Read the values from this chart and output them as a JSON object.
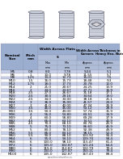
{
  "rows": [
    [
      "M5",
      "0.8",
      "8.0",
      "7.78",
      "9.24",
      "5.1"
    ],
    [
      "M6",
      "1",
      "10.0",
      "9.78",
      "11.55",
      "5.7"
    ],
    [
      "M8",
      "1.25",
      "13.0",
      "12.73",
      "15.01",
      "7.5"
    ],
    [
      "M10",
      "1.5",
      "16.0",
      "15.73",
      "18.48",
      "9.3"
    ],
    [
      "M12",
      "1.75",
      "18.0",
      "17.73",
      "20.78",
      "12.0"
    ],
    [
      "M14",
      "2",
      "21.0",
      "20.67",
      "24.25",
      "13.9"
    ],
    [
      "M16",
      "2",
      "24.0",
      "23.67",
      "27.71",
      "15.9"
    ],
    [
      "M18",
      "2.5",
      "27.0",
      "26.67",
      "31.18",
      "17.1"
    ],
    [
      "M20",
      "2.5",
      "30.0",
      "29.16",
      "34.64",
      "19.0"
    ],
    [
      "M22",
      "2.5",
      "34.0",
      "33.00",
      "38.18",
      "21.1"
    ],
    [
      "M24",
      "3",
      "36.0",
      "35.00",
      "41.57",
      "23.0"
    ],
    [
      "M27",
      "3",
      "41.0",
      "40.00",
      "47.34",
      "25.9"
    ],
    [
      "M30",
      "3.5",
      "46.0",
      "45.00",
      "53.12",
      "28.9"
    ],
    [
      "M33",
      "3.5",
      "50.0",
      "49.00",
      "57.74",
      "31.9"
    ],
    [
      "M36",
      "4",
      "55.0",
      "53.80",
      "63.51",
      "34.9"
    ],
    [
      "M39",
      "4",
      "60.0",
      "58.80",
      "69.28",
      "37.9"
    ],
    [
      "M42",
      "4.5",
      "65.0",
      "63.10",
      "74.51",
      "40.9"
    ],
    [
      "M45",
      "4.5",
      "70.0",
      "68.10",
      "80.78",
      "43.9"
    ],
    [
      "M48",
      "5",
      "75.0",
      "73.10",
      "86.60",
      "46.9"
    ],
    [
      "M52",
      "5",
      "80.0",
      "78.10",
      "92.38",
      "49.9"
    ],
    [
      "M56",
      "5.5",
      "85.0",
      "83.10",
      "98.15",
      "52.4"
    ],
    [
      "M60",
      "5.5",
      "90.0",
      "88.10",
      "103.92",
      "55.4"
    ],
    [
      "M64",
      "6",
      "95.0",
      "93.10",
      "109.70",
      "58.4"
    ],
    [
      "M68",
      "6",
      "100.0",
      "98.10",
      "115.47",
      "61.4"
    ],
    [
      "M72",
      "6",
      "105.0",
      "102.87",
      "121.24",
      "64.4"
    ],
    [
      "M80",
      "6",
      "115.0",
      "112.87",
      "132.79",
      "70.4"
    ],
    [
      "M90",
      "6",
      "130.0",
      "127.87",
      "150.11",
      "79.4"
    ],
    [
      "M100",
      "6",
      "145.0",
      "142.87",
      "167.43",
      "88.4"
    ]
  ],
  "bg_color": "#ffffff",
  "row_color_even": "#c8cfe8",
  "row_color_odd": "#ffffff",
  "header_color": "#9baecf",
  "subheader_color": "#b0bdd8",
  "text_color": "#000000",
  "border_color": "#888899",
  "drawing_bg": "#e8eaf0",
  "font_size": 3.0,
  "header_font_size": 3.0
}
